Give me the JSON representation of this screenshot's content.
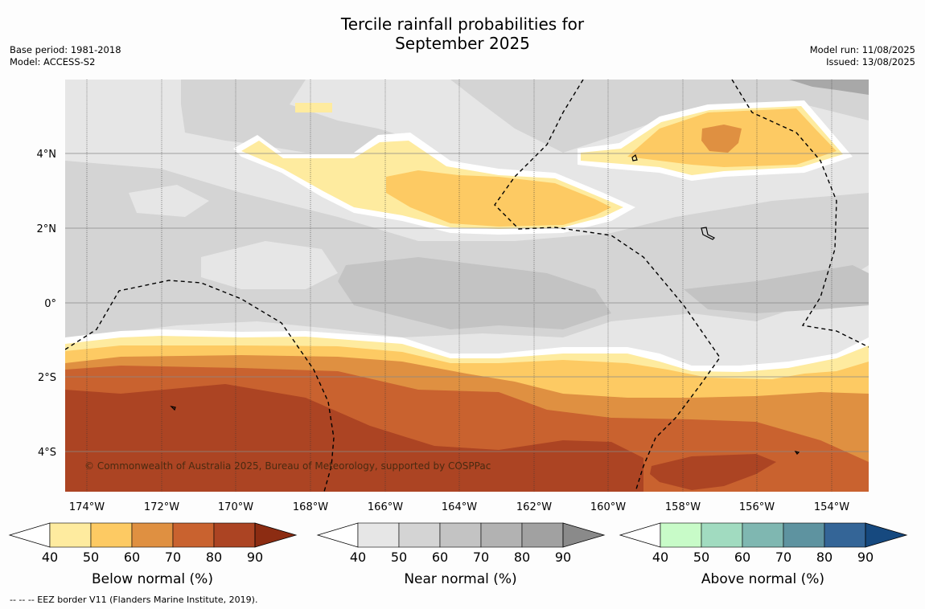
{
  "header": {
    "title_line1": "Tercile rainfall probabilities for",
    "title_line2": "September 2025",
    "base_period": "Base period: 1981-2018",
    "model": "Model: ACCESS-S2",
    "model_run": "Model run: 11/08/2025",
    "issued": "Issued: 13/08/2025"
  },
  "map": {
    "lon_labels": [
      "174°W",
      "172°W",
      "170°W",
      "168°W",
      "166°W",
      "164°W",
      "162°W",
      "160°W",
      "158°W",
      "156°W",
      "154°W"
    ],
    "lat_labels": [
      "4°N",
      "2°N",
      "0°",
      "2°S",
      "4°S"
    ],
    "copyright": "© Commonwealth of Australia 2025, Bureau of Meteorology, supported by COSPPac"
  },
  "legends": [
    {
      "label": "Below normal (%)",
      "ticks": [
        "40",
        "50",
        "60",
        "70",
        "80",
        "90"
      ],
      "colors": [
        "#ffffff",
        "#feeb9f",
        "#fdca63",
        "#df9041",
        "#c9622f",
        "#ac4423",
        "#8c2c12"
      ]
    },
    {
      "label": "Near normal (%)",
      "ticks": [
        "40",
        "50",
        "60",
        "70",
        "80",
        "90"
      ],
      "colors": [
        "#ffffff",
        "#e6e6e6",
        "#d4d4d4",
        "#c3c3c3",
        "#b2b2b2",
        "#a1a1a1",
        "#8a8a8a"
      ]
    },
    {
      "label": "Above normal (%)",
      "ticks": [
        "40",
        "50",
        "60",
        "70",
        "80",
        "90"
      ],
      "colors": [
        "#ffffff",
        "#c8fbc8",
        "#a1dbc0",
        "#7fb7b1",
        "#5e93a0",
        "#346597",
        "#16497f"
      ]
    }
  ],
  "footnote": "--  --  -- EEZ border V11 (Flanders Marine Institute, 2019)."
}
